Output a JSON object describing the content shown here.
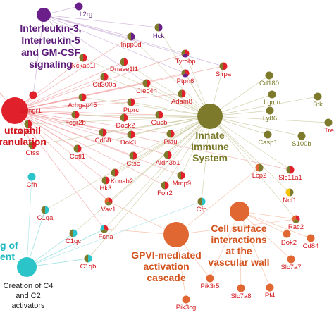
{
  "colors": {
    "red": "#e0212b",
    "purple": "#6a1f8a",
    "olive": "#7d7a2c",
    "orange": "#e06632",
    "cyan": "#2bc4c8",
    "yellow": "#f2c200",
    "text_red": "#d1151c",
    "text_purple": "#5b1a78",
    "text_olive": "#7a7a2a",
    "text_orange": "#d4541f",
    "text_cyan": "#1bb8bd",
    "edge_red": "#f1a0a3",
    "edge_purple": "#c7a9d6",
    "edge_olive": "#c9c79b",
    "edge_orange": "#f3b89c",
    "edge_cyan": "#9fe2e4"
  },
  "hubs": [
    {
      "id": "il",
      "lines": [
        "Interleukin-3,",
        "Interleukin-5",
        "and GM-CSF",
        "signaling"
      ],
      "group": "purple"
    },
    {
      "id": "neut",
      "lines": [
        "utrophil",
        "ranulation"
      ],
      "group": "red"
    },
    {
      "id": "innate",
      "lines": [
        "Innate",
        "Immune",
        "System"
      ],
      "group": "olive"
    },
    {
      "id": "gpvi",
      "lines": [
        "GPVI-mediated",
        "activation",
        "cascade"
      ],
      "group": "orange"
    },
    {
      "id": "cellsurf",
      "lines": [
        "Cell surface",
        "interactions",
        "at the",
        "vascular wall"
      ],
      "group": "orange"
    },
    {
      "id": "comp",
      "lines": [
        "g of",
        "ent"
      ],
      "group": "cyan"
    },
    {
      "id": "c4c2",
      "lines": [
        "Creation of C4",
        "and C2",
        "activators"
      ],
      "group": "cyan"
    }
  ],
  "genes": [
    {
      "id": "Il2rg",
      "label": "Il2rg",
      "fill": [
        "purple"
      ],
      "text": "purple"
    },
    {
      "id": "Hck",
      "label": "Hck",
      "fill": [
        "purple",
        "olive"
      ],
      "text": "purple"
    },
    {
      "id": "Inpp5d",
      "label": "Inpp5d",
      "fill": [
        "purple",
        "olive"
      ],
      "text": "red"
    },
    {
      "id": "Nckap1l",
      "label": "Nckap1l",
      "fill": [
        "red",
        "olive"
      ],
      "text": "red"
    },
    {
      "id": "Dnase1l1",
      "label": "Dnase1l1",
      "fill": [
        "red",
        "olive"
      ],
      "text": "red"
    },
    {
      "id": "Tyrobp",
      "label": "Tyrobp",
      "fill": [
        "red",
        "purple",
        "olive"
      ],
      "text": "red"
    },
    {
      "id": "Cd300a",
      "label": "Cd300a",
      "fill": [
        "red",
        "olive"
      ],
      "text": "red"
    },
    {
      "id": "Clec4n",
      "label": "Clec4n",
      "fill": [
        "red",
        "olive"
      ],
      "text": "red"
    },
    {
      "id": "Ptpn6",
      "label": "Ptpn6",
      "fill": [
        "red",
        "purple",
        "olive"
      ],
      "text": "red"
    },
    {
      "id": "Sirpa",
      "label": "Sirpa",
      "fill": [
        "red",
        "olive"
      ],
      "text": "red"
    },
    {
      "id": "Cd180",
      "label": "Cd180",
      "fill": [
        "olive"
      ],
      "text": "olive"
    },
    {
      "id": "Syngr1",
      "label": "Syngr1",
      "fill": [
        "red"
      ],
      "text": "red"
    },
    {
      "id": "Arhgap45",
      "label": "Arhgap45",
      "fill": [
        "red",
        "olive"
      ],
      "text": "red"
    },
    {
      "id": "Adam8",
      "label": "Adam8",
      "fill": [
        "red",
        "olive"
      ],
      "text": "red"
    },
    {
      "id": "Ptprc",
      "label": "Ptprc",
      "fill": [
        "red",
        "olive"
      ],
      "text": "red"
    },
    {
      "id": "Lgmn",
      "label": "Lgmn",
      "fill": [
        "olive"
      ],
      "text": "olive"
    },
    {
      "id": "Btk",
      "label": "Btk",
      "fill": [
        "olive"
      ],
      "text": "olive"
    },
    {
      "id": "Cd33",
      "label": "Cd33",
      "fill": [
        "red",
        "olive"
      ],
      "text": "red"
    },
    {
      "id": "Fcgr2b",
      "label": "Fcgr2b",
      "fill": [
        "red",
        "olive"
      ],
      "text": "red"
    },
    {
      "id": "Dock2",
      "label": "Dock2",
      "fill": [
        "red",
        "olive"
      ],
      "text": "red"
    },
    {
      "id": "Gusb",
      "label": "Gusb",
      "fill": [
        "red",
        "olive"
      ],
      "text": "red"
    },
    {
      "id": "Ly86",
      "label": "Ly86",
      "fill": [
        "olive"
      ],
      "text": "olive"
    },
    {
      "id": "Tre",
      "label": "Tre",
      "fill": [
        "olive"
      ],
      "text": "red"
    },
    {
      "id": "Cd68",
      "label": "Cd68",
      "fill": [
        "red",
        "olive"
      ],
      "text": "red"
    },
    {
      "id": "Dok3",
      "label": "Dok3",
      "fill": [
        "red",
        "olive"
      ],
      "text": "red"
    },
    {
      "id": "Plau",
      "label": "Plau",
      "fill": [
        "red",
        "olive"
      ],
      "text": "red"
    },
    {
      "id": "Casp1",
      "label": "Casp1",
      "fill": [
        "olive"
      ],
      "text": "olive"
    },
    {
      "id": "S100b",
      "label": "S100b",
      "fill": [
        "olive"
      ],
      "text": "olive"
    },
    {
      "id": "Ctss",
      "label": "Ctss",
      "fill": [
        "red",
        "olive"
      ],
      "text": "red"
    },
    {
      "id": "Cotl1",
      "label": "Cotl1",
      "fill": [
        "red",
        "olive"
      ],
      "text": "red"
    },
    {
      "id": "Ctsc",
      "label": "Ctsc",
      "fill": [
        "red",
        "olive"
      ],
      "text": "red"
    },
    {
      "id": "Aldh3b1",
      "label": "Aldh3b1",
      "fill": [
        "red",
        "olive"
      ],
      "text": "red"
    },
    {
      "id": "Lcp2",
      "label": "Lcp2",
      "fill": [
        "olive",
        "orange"
      ],
      "text": "red"
    },
    {
      "id": "Slc11a1",
      "label": "Slc11a1",
      "fill": [
        "red",
        "olive"
      ],
      "text": "red"
    },
    {
      "id": "Cfh",
      "label": "Cfh",
      "fill": [
        "cyan"
      ],
      "text": "red"
    },
    {
      "id": "Kcnab2",
      "label": "Kcnab2",
      "fill": [
        "red",
        "olive"
      ],
      "text": "red"
    },
    {
      "id": "Hk3",
      "label": "Hk3",
      "fill": [
        "red",
        "olive"
      ],
      "text": "red"
    },
    {
      "id": "Mmp9",
      "label": "Mmp9",
      "fill": [
        "red",
        "olive"
      ],
      "text": "red"
    },
    {
      "id": "Folr2",
      "label": "Folr2",
      "fill": [
        "red",
        "olive"
      ],
      "text": "red"
    },
    {
      "id": "Ncf1",
      "label": "Ncf1",
      "fill": [
        "olive",
        "yellow"
      ],
      "text": "red"
    },
    {
      "id": "C1qa",
      "label": "C1qa",
      "fill": [
        "cyan",
        "olive"
      ],
      "text": "red"
    },
    {
      "id": "Vav1",
      "label": "Vav1",
      "fill": [
        "red",
        "olive",
        "orange"
      ],
      "text": "red"
    },
    {
      "id": "Cfp",
      "label": "Cfp",
      "fill": [
        "cyan",
        "olive"
      ],
      "text": "red"
    },
    {
      "id": "Rac2",
      "label": "Rac2",
      "fill": [
        "red",
        "olive",
        "orange"
      ],
      "text": "red"
    },
    {
      "id": "C1qc",
      "label": "C1qc",
      "fill": [
        "cyan",
        "olive"
      ],
      "text": "red"
    },
    {
      "id": "Fcna",
      "label": "Fcna",
      "fill": [
        "red",
        "olive",
        "cyan"
      ],
      "text": "red"
    },
    {
      "id": "Dok2",
      "label": "Dok2",
      "fill": [
        "orange"
      ],
      "text": "red"
    },
    {
      "id": "Cd84",
      "label": "Cd84",
      "fill": [
        "orange"
      ],
      "text": "red"
    },
    {
      "id": "C1qb",
      "label": "C1qb",
      "fill": [
        "cyan",
        "olive"
      ],
      "text": "red"
    },
    {
      "id": "Slc7a7",
      "label": "Slc7a7",
      "fill": [
        "orange"
      ],
      "text": "red"
    },
    {
      "id": "Pik3r5",
      "label": "Pik3r5",
      "fill": [
        "orange"
      ],
      "text": "red"
    },
    {
      "id": "Slc7a8",
      "label": "Slc7a8",
      "fill": [
        "orange"
      ],
      "text": "red"
    },
    {
      "id": "Pf4",
      "label": "Pf4",
      "fill": [
        "orange"
      ],
      "text": "red"
    },
    {
      "id": "Pik3cg",
      "label": "Pik3cg",
      "fill": [
        "orange"
      ],
      "text": "red"
    }
  ],
  "edges": {
    "il": [
      "Il2rg",
      "Hck",
      "Inpp5d",
      "Tyrobp",
      "Ptpn6",
      "Sirpa",
      "Syngr1",
      "Nckap1l",
      "Clec4n"
    ],
    "neut": [
      "Inpp5d",
      "Nckap1l",
      "Dnase1l1",
      "Tyrobp",
      "Cd300a",
      "Clec4n",
      "Ptpn6",
      "Sirpa",
      "Syngr1",
      "Arhgap45",
      "Adam8",
      "Ptprc",
      "Cd33",
      "Fcgr2b",
      "Dock2",
      "Gusb",
      "Cd68",
      "Dok3",
      "Plau",
      "Ctss",
      "Cotl1",
      "Ctsc",
      "Aldh3b1",
      "Slc11a1",
      "Kcnab2",
      "Hk3",
      "Mmp9",
      "Folr2",
      "Vav1",
      "Fcna"
    ],
    "innate": [
      "Hck",
      "Inpp5d",
      "Nckap1l",
      "Dnase1l1",
      "Tyrobp",
      "Cd300a",
      "Clec4n",
      "Ptpn6",
      "Sirpa",
      "Cd180",
      "Arhgap45",
      "Adam8",
      "Ptprc",
      "Lgmn",
      "Btk",
      "Cd33",
      "Fcgr2b",
      "Dock2",
      "Gusb",
      "Ly86",
      "Tre",
      "Cd68",
      "Dok3",
      "Plau",
      "Casp1",
      "S100b",
      "Ctss",
      "Cotl1",
      "Ctsc",
      "Aldh3b1",
      "Lcp2",
      "Slc11a1",
      "Kcnab2",
      "Hk3",
      "Mmp9",
      "Folr2",
      "Ncf1",
      "C1qa",
      "Vav1",
      "Cfp",
      "Rac2",
      "C1qc",
      "Fcna",
      "C1qb"
    ],
    "gpvi": [
      "Lcp2",
      "Vav1",
      "Rac2",
      "Pik3r5",
      "Pik3cg",
      "Fcna"
    ],
    "cellsurf": [
      "Dok2",
      "Cd84",
      "Slc7a7",
      "Slc7a8",
      "Pf4",
      "Rac2",
      "Pik3r5"
    ],
    "comp": [
      "Cfh",
      "C1qa",
      "C1qc",
      "C1qb",
      "Fcna",
      "Cfp"
    ],
    "c4c2": [
      "C1qa",
      "C1qc",
      "C1qb",
      "Fcna"
    ]
  }
}
